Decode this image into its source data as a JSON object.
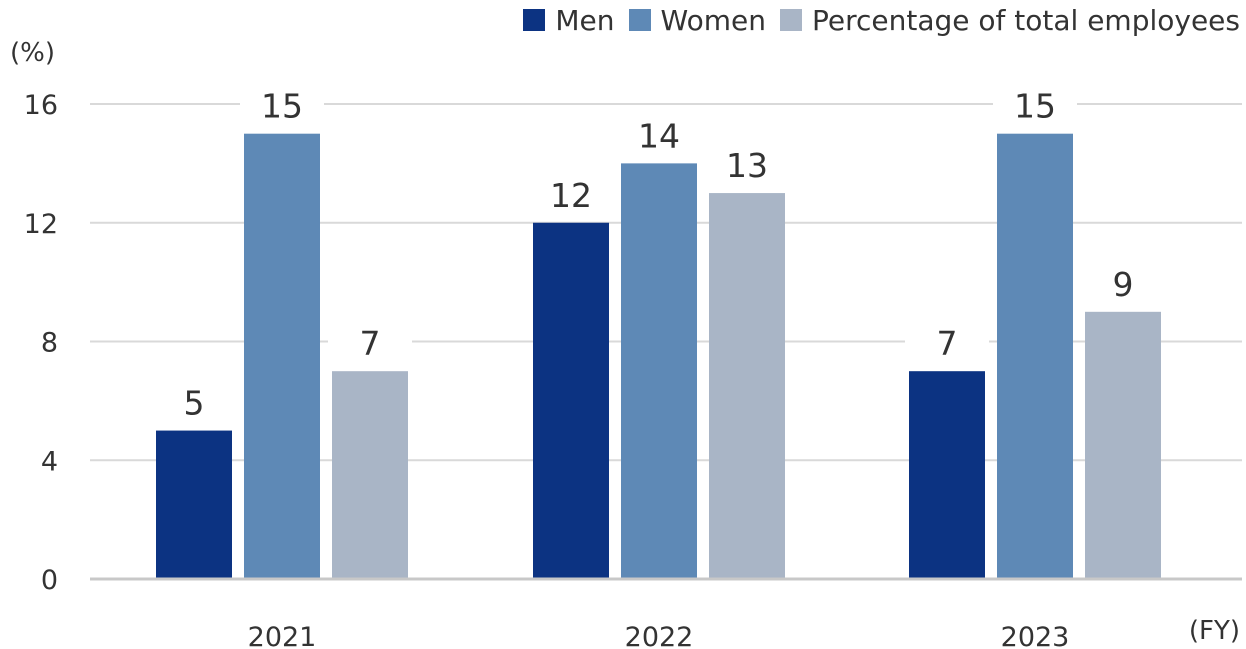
{
  "chart_data": {
    "type": "bar",
    "categories": [
      "2021",
      "2022",
      "2023"
    ],
    "series": [
      {
        "name": "Men",
        "values": [
          5,
          12,
          7
        ],
        "color": "#0c3382"
      },
      {
        "name": "Women",
        "values": [
          15,
          14,
          15
        ],
        "color": "#5e89b6"
      },
      {
        "name": "Percentage of total employees",
        "values": [
          7,
          13,
          9
        ],
        "color": "#a9b5c6"
      }
    ],
    "y_unit_label": "(%)",
    "x_unit_label": "(FY)",
    "ylim": [
      0,
      16
    ],
    "yticks": [
      0,
      4,
      8,
      12,
      16
    ],
    "grid": true,
    "legend_position": "top-right"
  }
}
